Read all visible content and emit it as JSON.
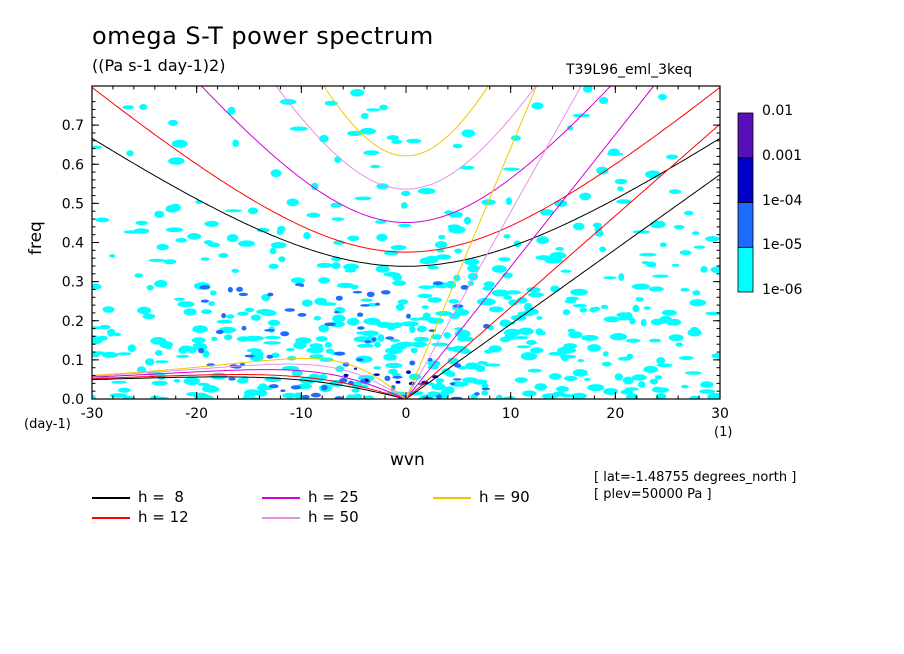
{
  "chart_data": {
    "type": "heatmap",
    "title": "omega S-T power spectrum",
    "subtitle": "((Pa s-1 day-1)2)",
    "experiment": "T39L96_eml_3keq",
    "xlabel": "wvn",
    "ylabel": "freq",
    "x_unit": "(1)",
    "y_unit": "(day-1)",
    "xlim": [
      -30,
      30
    ],
    "ylim": [
      0,
      0.8
    ],
    "x_ticks": [
      "-30",
      "-20",
      "-10",
      "0",
      "10",
      "20",
      "30"
    ],
    "y_ticks": [
      "0.0",
      "0.1",
      "0.2",
      "0.3",
      "0.4",
      "0.5",
      "0.6",
      "0.7"
    ],
    "colorbar": {
      "levels": [
        "1e-06",
        "1e-05",
        "1e-04",
        "0.001",
        "0.01"
      ],
      "colors": [
        "#00ffff",
        "#1e6cff",
        "#0000c8",
        "#5a10b8"
      ]
    },
    "info": [
      "[ lat=-1.48755 degrees_north ]",
      "[ plev=50000 Pa ]"
    ],
    "dispersion_curves": [
      {
        "label": "h =  8",
        "h": 8,
        "color": "#000000"
      },
      {
        "label": "h = 12",
        "h": 12,
        "color": "#ff0000"
      },
      {
        "label": "h = 25",
        "h": 25,
        "color": "#d400d4"
      },
      {
        "label": "h = 50",
        "h": 50,
        "color": "#e890e8"
      },
      {
        "label": "h = 90",
        "h": 90,
        "color": "#f0c800"
      }
    ]
  }
}
